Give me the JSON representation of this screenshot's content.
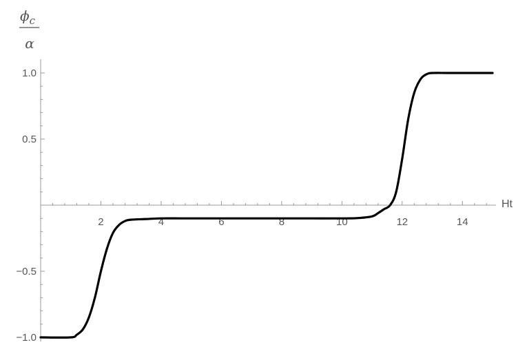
{
  "chart_data": {
    "type": "line",
    "xlabel": "Ht",
    "ylabel": {
      "numerator_symbol": "ϕ",
      "numerator_subscript": "c",
      "denominator": "α"
    },
    "xlim": [
      0,
      15
    ],
    "ylim": [
      -1.0,
      1.0
    ],
    "x_ticks": [
      2,
      4,
      6,
      8,
      10,
      12,
      14
    ],
    "x_tick_labels": [
      "2",
      "4",
      "6",
      "8",
      "10",
      "12",
      "14"
    ],
    "y_ticks": [
      -1.0,
      -0.5,
      0.5,
      1.0
    ],
    "y_tick_labels": [
      "-1.0",
      "-0.5",
      "0.5",
      "1.0"
    ],
    "grid": false,
    "series": [
      {
        "color": "#000000",
        "x": [
          0,
          1,
          1.2,
          1.4,
          1.6,
          1.8,
          2.0,
          2.2,
          2.4,
          2.6,
          2.8,
          3.0,
          3.5,
          4,
          5,
          6,
          7,
          8,
          9,
          10,
          10.5,
          11.0,
          11.2,
          11.4,
          11.6,
          11.8,
          12.0,
          12.2,
          12.4,
          12.6,
          12.8,
          13.0,
          13.5,
          14,
          15
        ],
        "y": [
          -1.0,
          -1.0,
          -0.98,
          -0.94,
          -0.85,
          -0.7,
          -0.5,
          -0.33,
          -0.21,
          -0.15,
          -0.12,
          -0.11,
          -0.105,
          -0.1,
          -0.1,
          -0.1,
          -0.1,
          -0.1,
          -0.1,
          -0.1,
          -0.098,
          -0.085,
          -0.06,
          -0.03,
          0.0,
          0.1,
          0.35,
          0.65,
          0.85,
          0.95,
          0.99,
          1.0,
          1.0,
          1.0,
          1.0
        ]
      }
    ]
  }
}
